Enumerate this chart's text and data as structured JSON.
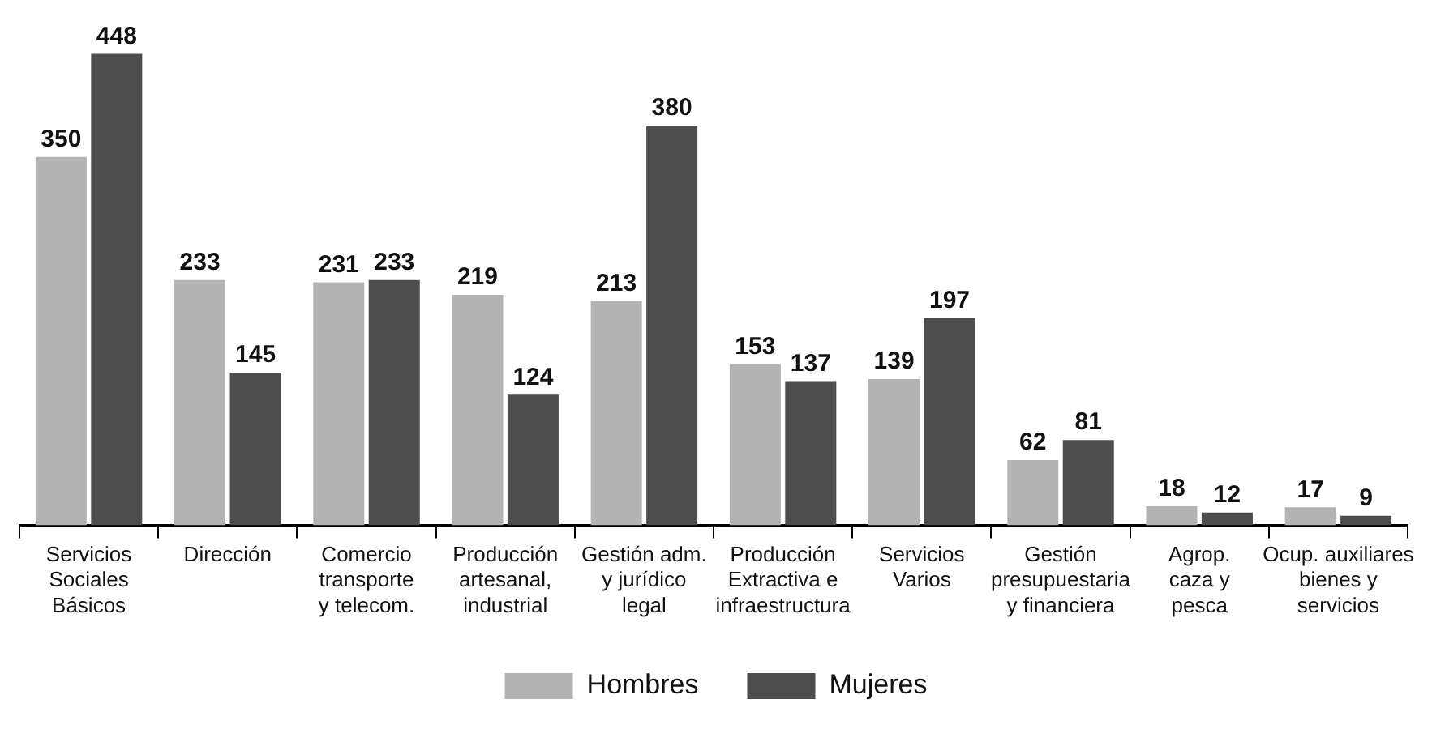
{
  "chart_data": {
    "type": "bar",
    "categories": [
      "Servicios\nSociales\nBásicos",
      "Dirección",
      "Comercio\ntransporte\ny telecom.",
      "Producción\nartesanal,\nindustrial",
      "Gestión adm.\ny jurídico\nlegal",
      "Producción\nExtractiva e\ninfraestructura",
      "Servicios\nVarios",
      "Gestión\npresupuestaria\ny financiera",
      "Agrop.\ncaza y\npesca",
      "Ocup. auxiliares\nbienes y\nservicios"
    ],
    "series": [
      {
        "name": "Hombres",
        "color": "#b3b3b3",
        "values": [
          350,
          233,
          231,
          219,
          213,
          153,
          139,
          62,
          18,
          17
        ]
      },
      {
        "name": "Mujeres",
        "color": "#4d4d4d",
        "values": [
          448,
          145,
          233,
          124,
          380,
          137,
          197,
          81,
          12,
          9
        ]
      }
    ],
    "data_labels": true,
    "legend": "bottom",
    "grid": false
  }
}
